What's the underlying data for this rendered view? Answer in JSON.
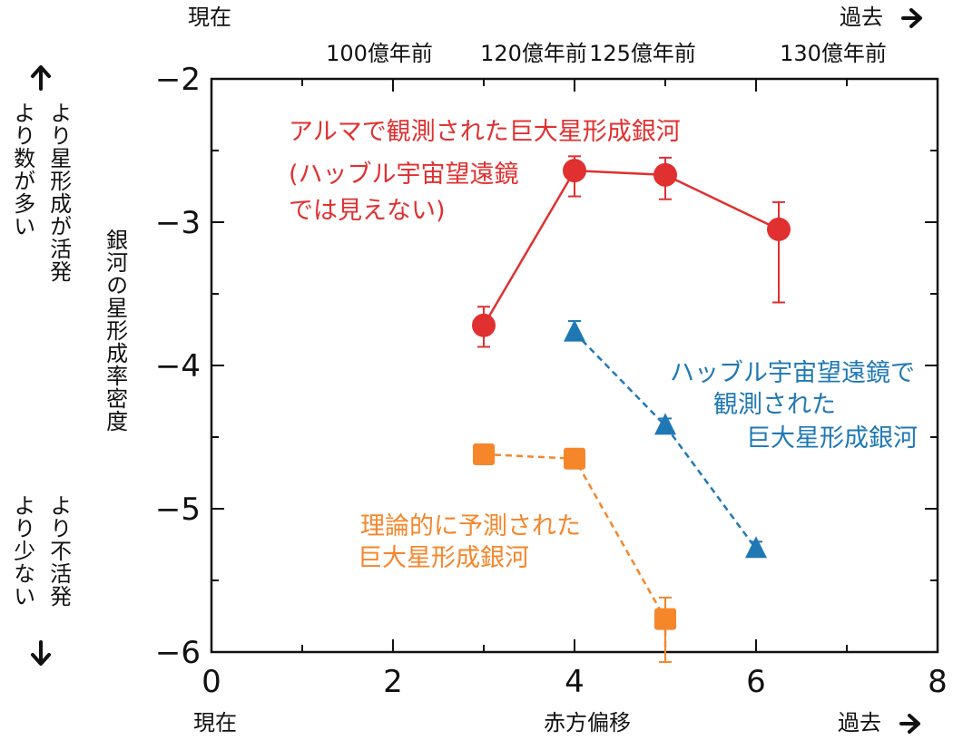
{
  "chart_data": {
    "type": "line",
    "x_axis": {
      "label": "赤方偏移",
      "range": [
        0,
        8
      ],
      "ticks": [
        0,
        2,
        4,
        6,
        8
      ],
      "left_end_label": "現在",
      "right_end_label": "過去"
    },
    "top_axis": {
      "left_end_label": "現在",
      "right_end_label": "過去",
      "labels": [
        {
          "text": "100億年前",
          "z": 1.85
        },
        {
          "text": "120億年前",
          "z": 3.55
        },
        {
          "text": "125億年前",
          "z": 4.75
        },
        {
          "text": "130億年前",
          "z": 6.85
        }
      ]
    },
    "y_axis": {
      "label": "銀河の星形成率密度",
      "range": [
        -6,
        -2
      ],
      "ticks": [
        -2,
        -3,
        -4,
        -5,
        -6
      ],
      "top_note": [
        "より星形成が活発",
        "より数が多い"
      ],
      "bottom_note": [
        "より不活発",
        "より少ない"
      ]
    },
    "series": [
      {
        "name": "アルマで観測された巨大星形成銀河（ハッブル宇宙望遠鏡では見えない）",
        "annotation_lines": [
          "アルマで観測された巨大星形成銀河",
          "(ハッブル宇宙望遠鏡",
          "では見えない)"
        ],
        "color": "#e03030",
        "marker": "circle",
        "line": "solid",
        "points": [
          {
            "x": 3.0,
            "y": -3.72,
            "err_low": 0.15,
            "err_high": 0.13
          },
          {
            "x": 4.0,
            "y": -2.64,
            "err_low": 0.18,
            "err_high": 0.1
          },
          {
            "x": 5.0,
            "y": -2.67,
            "err_low": 0.17,
            "err_high": 0.12
          },
          {
            "x": 6.25,
            "y": -3.05,
            "err_low": 0.51,
            "err_high": 0.19
          }
        ]
      },
      {
        "name": "ハッブル宇宙望遠鏡で観測された巨大星形成銀河",
        "annotation_lines": [
          "ハッブル宇宙望遠鏡で",
          "観測された",
          "巨大星形成銀河"
        ],
        "color": "#1f78b4",
        "marker": "triangle",
        "line": "dashed",
        "points": [
          {
            "x": 4.0,
            "y": -3.77,
            "err_low": 0.05,
            "err_high": 0.08
          },
          {
            "x": 5.0,
            "y": -4.42,
            "err_low": 0.05,
            "err_high": 0.05
          },
          {
            "x": 6.0,
            "y": -5.28,
            "err_low": 0.05,
            "err_high": 0.05
          }
        ]
      },
      {
        "name": "理論的に予測された巨大星形成銀河",
        "annotation_lines": [
          "理論的に予測された",
          "巨大星形成銀河"
        ],
        "color": "#f5862a",
        "marker": "square",
        "line": "dashed",
        "points": [
          {
            "x": 3.0,
            "y": -4.62
          },
          {
            "x": 4.0,
            "y": -4.65
          },
          {
            "x": 5.0,
            "y": -5.77,
            "err_low": 0.3,
            "err_high": 0.15
          }
        ]
      }
    ]
  }
}
